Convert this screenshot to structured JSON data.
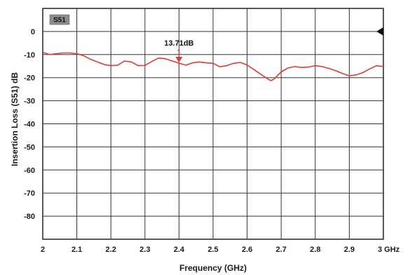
{
  "chart_data": {
    "type": "line",
    "badge": "S51",
    "xlabel": "Frequency (GHz)",
    "ylabel": "Insertion Loss (S51) dB",
    "xlim": [
      2.0,
      3.0
    ],
    "ylim": [
      -90,
      10
    ],
    "grid": true,
    "x_ticks": [
      2.0,
      2.1,
      2.2,
      2.3,
      2.4,
      2.5,
      2.6,
      2.7,
      2.8,
      2.9,
      3.0
    ],
    "x_tick_labels": [
      "2",
      "2.1",
      "2.2",
      "2.3",
      "2.4",
      "2.5",
      "2.6",
      "2.7",
      "2.8",
      "2.9",
      "3 GHz"
    ],
    "y_ticks": [
      0,
      -10,
      -20,
      -30,
      -40,
      -50,
      -60,
      -70,
      -80
    ],
    "y_tick_labels": [
      "0",
      "-10",
      "-20",
      "-30",
      "-40",
      "-50",
      "-60",
      "-70",
      "-80"
    ],
    "reference_level": 0,
    "series": [
      {
        "color": "#e53935",
        "x": [
          2.0,
          2.02,
          2.04,
          2.06,
          2.08,
          2.1,
          2.12,
          2.14,
          2.16,
          2.18,
          2.2,
          2.22,
          2.24,
          2.26,
          2.28,
          2.3,
          2.32,
          2.34,
          2.36,
          2.38,
          2.4,
          2.42,
          2.44,
          2.46,
          2.48,
          2.5,
          2.52,
          2.54,
          2.56,
          2.58,
          2.6,
          2.62,
          2.64,
          2.66,
          2.67,
          2.68,
          2.7,
          2.72,
          2.74,
          2.76,
          2.78,
          2.8,
          2.82,
          2.84,
          2.86,
          2.88,
          2.9,
          2.92,
          2.94,
          2.96,
          2.98,
          3.0
        ],
        "y": [
          -9,
          -10,
          -9.6,
          -9.3,
          -9.3,
          -9.6,
          -10.5,
          -12,
          -13.2,
          -14.3,
          -14.8,
          -14.6,
          -12.8,
          -13.2,
          -14.8,
          -14.7,
          -13.0,
          -11.5,
          -11.8,
          -12.8,
          -13.7,
          -14.6,
          -13.6,
          -13.2,
          -13.6,
          -13.8,
          -15.3,
          -14.8,
          -13.8,
          -13.4,
          -14.5,
          -16.5,
          -18.5,
          -20.5,
          -21.3,
          -20.5,
          -17.5,
          -15.8,
          -15.2,
          -15.6,
          -15.4,
          -14.8,
          -15.2,
          -16.0,
          -17.0,
          -18.2,
          -19.2,
          -18.8,
          -17.8,
          -16.2,
          -14.8,
          -15.2
        ]
      }
    ],
    "annotations": [
      {
        "label": "13.71dB",
        "marker": "1",
        "x": 2.4,
        "y": -13.71
      }
    ]
  }
}
